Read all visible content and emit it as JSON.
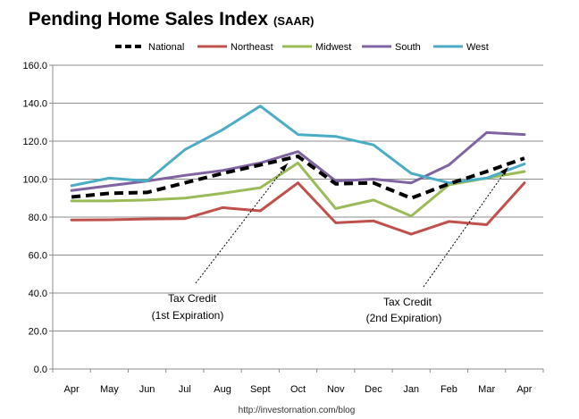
{
  "chart_data": {
    "type": "line",
    "title": "Pending Home Sales Index",
    "subtitle": "(SAAR)",
    "categories": [
      "Apr",
      "May",
      "Jun",
      "Jul",
      "Aug",
      "Sept",
      "Oct",
      "Nov",
      "Dec",
      "Jan",
      "Feb",
      "Mar",
      "Apr"
    ],
    "ylim": [
      0,
      160
    ],
    "yticks": [
      "0.0",
      "20.0",
      "40.0",
      "60.0",
      "80.0",
      "100.0",
      "120.0",
      "140.0",
      "160.0"
    ],
    "grid": true,
    "legend_position": "top",
    "series": [
      {
        "name": "National",
        "color": "#000000",
        "dashed": true,
        "values": [
          90.6,
          92.5,
          93.0,
          98.0,
          103.0,
          107.5,
          112.0,
          97.5,
          98.0,
          90.0,
          97.5,
          104.0,
          111.0
        ]
      },
      {
        "name": "Northeast",
        "color": "#c0504d",
        "dashed": false,
        "values": [
          78.5,
          78.6,
          79.0,
          79.2,
          85.0,
          83.3,
          98.0,
          77.0,
          78.0,
          71.0,
          77.7,
          76.0,
          98.0
        ]
      },
      {
        "name": "Midwest",
        "color": "#9bbb59",
        "dashed": false,
        "values": [
          88.5,
          88.5,
          89.0,
          90.0,
          92.5,
          95.5,
          108.5,
          84.5,
          89.0,
          80.5,
          97.0,
          100.5,
          104.0
        ]
      },
      {
        "name": "South",
        "color": "#8064a2",
        "dashed": false,
        "values": [
          94.0,
          96.5,
          99.0,
          102.0,
          104.5,
          108.5,
          114.5,
          99.0,
          100.0,
          98.0,
          107.5,
          124.5,
          123.5
        ]
      },
      {
        "name": "West",
        "color": "#4bacc6",
        "dashed": false,
        "values": [
          96.5,
          100.5,
          99.0,
          115.5,
          126.0,
          138.5,
          123.5,
          122.5,
          118.0,
          103.0,
          98.0,
          100.5,
          108.0
        ]
      }
    ],
    "annotations": [
      {
        "lines": [
          "Tax Credit",
          "(1st Expiration)"
        ],
        "points_to": "Oct"
      },
      {
        "lines": [
          "Tax Credit",
          "(2nd Expiration)"
        ],
        "points_to": "Apr"
      }
    ]
  },
  "footer": "http://investornation.com/blog"
}
